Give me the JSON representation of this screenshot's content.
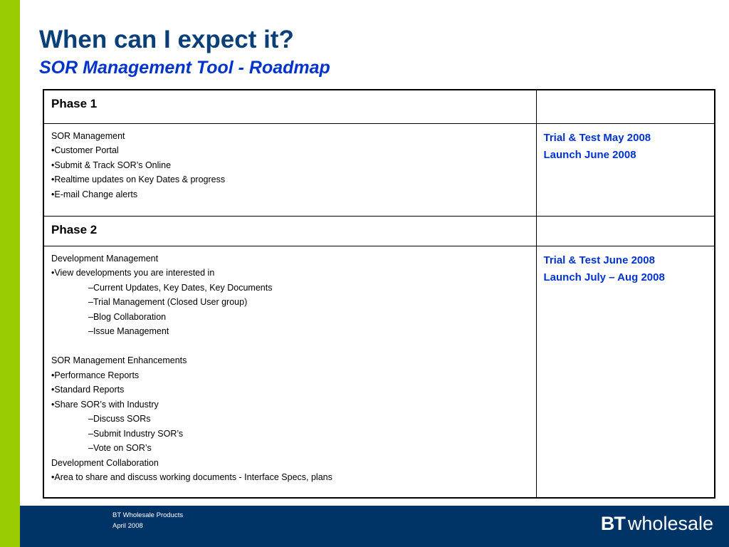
{
  "header": {
    "title": "When can I expect it?",
    "subtitle": "SOR Management Tool - Roadmap"
  },
  "colors": {
    "accent_bar": "#99cc00",
    "title": "#0a3f78",
    "subtitle": "#0033cc",
    "dates": "#0033cc",
    "footer_bg": "#003366"
  },
  "phases": [
    {
      "label": "Phase 1",
      "description": [
        {
          "text": "SOR Management",
          "indent": 0
        },
        {
          "text": "•Customer Portal",
          "indent": 0
        },
        {
          "text": "•Submit & Track SOR’s Online",
          "indent": 0
        },
        {
          "text": "•Realtime updates on Key Dates & progress",
          "indent": 0
        },
        {
          "text": "•E-mail Change alerts",
          "indent": 0
        }
      ],
      "dates": [
        "Trial & Test May 2008",
        "Launch June 2008"
      ]
    },
    {
      "label": "Phase 2",
      "description": [
        {
          "text": "Development Management",
          "indent": 0
        },
        {
          "text": "•View developments you are interested in",
          "indent": 0
        },
        {
          "text": "–Current Updates, Key Dates, Key Documents",
          "indent": 1
        },
        {
          "text": "–Trial Management (Closed User group)",
          "indent": 1
        },
        {
          "text": "–Blog Collaboration",
          "indent": 1
        },
        {
          "text": "–Issue Management",
          "indent": 1
        },
        {
          "text": "",
          "indent": 0
        },
        {
          "text": "SOR Management Enhancements",
          "indent": 0
        },
        {
          "text": "•Performance Reports",
          "indent": 0
        },
        {
          "text": "•Standard Reports",
          "indent": 0
        },
        {
          "text": "•Share SOR’s with Industry",
          "indent": 0
        },
        {
          "text": "–Discuss SORs",
          "indent": 1
        },
        {
          "text": "–Submit Industry SOR’s",
          "indent": 1
        },
        {
          "text": "–Vote on SOR’s",
          "indent": 1
        },
        {
          "text": "Development Collaboration",
          "indent": 0
        },
        {
          "text": "•Area to share and discuss working documents - Interface Specs, plans",
          "indent": 0
        }
      ],
      "dates": [
        "Trial & Test June 2008",
        "Launch July – Aug 2008"
      ]
    }
  ],
  "footer": {
    "line1": "BT Wholesale Products",
    "line2": "April 2008",
    "logo_mark": "BT",
    "logo_word": "wholesale"
  }
}
